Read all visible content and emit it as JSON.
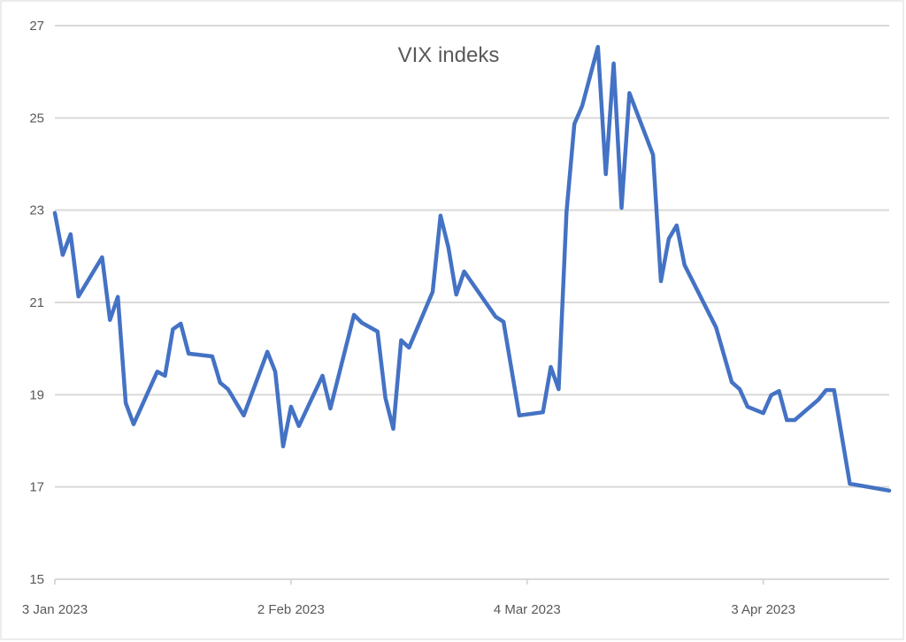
{
  "chart_data": {
    "type": "line",
    "title": "VIX indeks",
    "xlabel": "",
    "ylabel": "",
    "ylim": [
      15,
      27
    ],
    "yticks": [
      15,
      17,
      19,
      21,
      23,
      25,
      27
    ],
    "xlim": [
      "2023-01-03",
      "2023-04-19"
    ],
    "xticks": [
      {
        "date": "2023-01-03",
        "label": "3 Jan 2023"
      },
      {
        "date": "2023-02-02",
        "label": "2 Feb 2023"
      },
      {
        "date": "2023-03-04",
        "label": "4 Mar 2023"
      },
      {
        "date": "2023-04-03",
        "label": "3 Apr 2023"
      }
    ],
    "grid": "horizontal",
    "legend": "none",
    "colors": {
      "line": "#4472C4",
      "grid": "#D9D9D9",
      "text": "#595959"
    },
    "series": [
      {
        "x": [
          "2023-01-03",
          "2023-01-04",
          "2023-01-05",
          "2023-01-06",
          "2023-01-09",
          "2023-01-10",
          "2023-01-11",
          "2023-01-12",
          "2023-01-13",
          "2023-01-16",
          "2023-01-17",
          "2023-01-18",
          "2023-01-19",
          "2023-01-20",
          "2023-01-23",
          "2023-01-24",
          "2023-01-25",
          "2023-01-27",
          "2023-01-30",
          "2023-01-31",
          "2023-02-01",
          "2023-02-02",
          "2023-02-03",
          "2023-02-06",
          "2023-02-07",
          "2023-02-10",
          "2023-02-11",
          "2023-02-13",
          "2023-02-14",
          "2023-02-15",
          "2023-02-16",
          "2023-02-17",
          "2023-02-20",
          "2023-02-21",
          "2023-02-22",
          "2023-02-23",
          "2023-02-24",
          "2023-02-28",
          "2023-03-01",
          "2023-03-03",
          "2023-03-06",
          "2023-03-07",
          "2023-03-08",
          "2023-03-09",
          "2023-03-10",
          "2023-03-11",
          "2023-03-13",
          "2023-03-14",
          "2023-03-15",
          "2023-03-16",
          "2023-03-17",
          "2023-03-20",
          "2023-03-21",
          "2023-03-22",
          "2023-03-23",
          "2023-03-24",
          "2023-03-28",
          "2023-03-30",
          "2023-03-31",
          "2023-04-01",
          "2023-04-03",
          "2023-04-04",
          "2023-04-05",
          "2023-04-06",
          "2023-04-07",
          "2023-04-10",
          "2023-04-11",
          "2023-04-12",
          "2023-04-14",
          "2023-04-19"
        ],
        "values": [
          22.94,
          22.03,
          22.48,
          21.13,
          21.98,
          20.62,
          21.12,
          18.82,
          18.36,
          19.5,
          19.41,
          20.42,
          20.54,
          19.89,
          19.83,
          19.26,
          19.12,
          18.55,
          19.93,
          19.5,
          17.88,
          18.74,
          18.32,
          19.41,
          18.7,
          20.73,
          20.56,
          20.37,
          18.93,
          18.26,
          20.18,
          20.02,
          21.23,
          22.88,
          22.19,
          21.17,
          21.67,
          20.69,
          20.58,
          18.55,
          18.62,
          19.6,
          19.12,
          22.96,
          24.87,
          25.26,
          26.54,
          23.78,
          26.18,
          23.05,
          25.54,
          24.2,
          21.46,
          22.38,
          22.67,
          21.81,
          20.46,
          19.27,
          19.12,
          18.74,
          18.6,
          18.99,
          19.08,
          18.45,
          18.45,
          18.89,
          19.1,
          19.1,
          17.07,
          16.92
        ]
      }
    ]
  }
}
